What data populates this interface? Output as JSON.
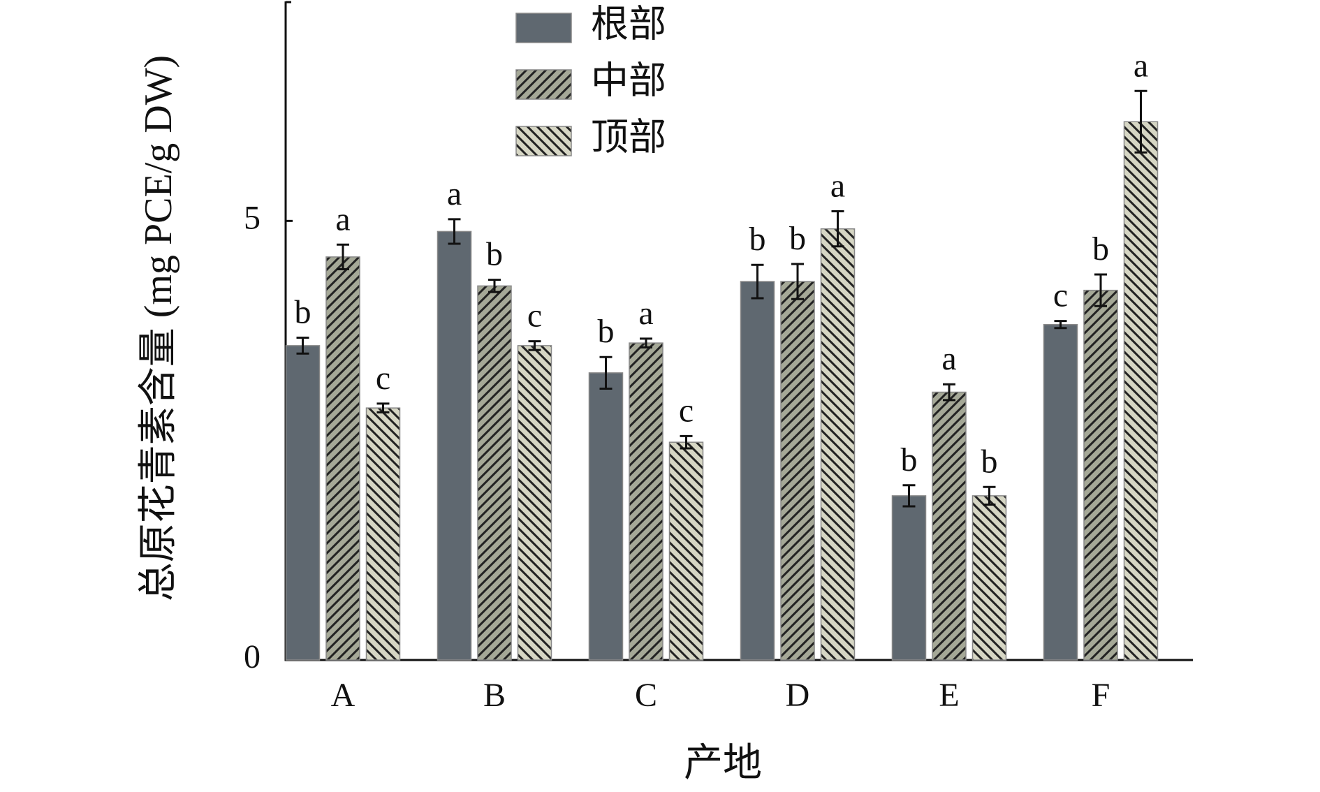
{
  "chart_data": {
    "type": "bar",
    "y_label": "总原花青素含量 (mg PCE/g DW)",
    "x_label": "产地",
    "categories": [
      "A",
      "B",
      "C",
      "D",
      "E",
      "F"
    ],
    "series": [
      {
        "name": "根部",
        "color": "#5f6870",
        "hatch": "none",
        "values": [
          3.58,
          4.88,
          3.27,
          4.31,
          1.87,
          3.82
        ],
        "errors": [
          0.09,
          0.14,
          0.18,
          0.19,
          0.12,
          0.04
        ],
        "labels": [
          "b",
          "a",
          "b",
          "b",
          "b",
          "c"
        ]
      },
      {
        "name": "中部",
        "color": "#a5a897",
        "hatch": "forward",
        "values": [
          4.59,
          4.26,
          3.61,
          4.31,
          3.05,
          4.21
        ],
        "errors": [
          0.14,
          0.07,
          0.05,
          0.2,
          0.09,
          0.18
        ],
        "labels": [
          "a",
          "b",
          "a",
          "b",
          "a",
          "b"
        ]
      },
      {
        "name": "顶部",
        "color": "#d6d6c4",
        "hatch": "back",
        "values": [
          2.87,
          3.58,
          2.48,
          4.91,
          1.87,
          6.13
        ],
        "errors": [
          0.05,
          0.05,
          0.07,
          0.2,
          0.1,
          0.35
        ],
        "labels": [
          "c",
          "c",
          "c",
          "a",
          "b",
          "a"
        ]
      }
    ],
    "ylim": [
      0,
      7.5
    ],
    "yticks": [
      0,
      5
    ],
    "minor_yticks": [
      2.5
    ],
    "grid": false,
    "legend": "top"
  }
}
